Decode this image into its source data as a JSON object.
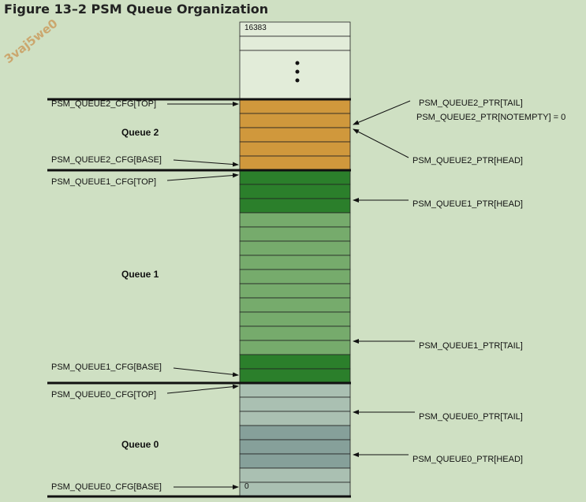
{
  "figure": {
    "title": "Figure 13–2  PSM Queue Organization",
    "watermark": "3vaj5we0"
  },
  "memory": {
    "top_index": "16383",
    "bottom_index": "0",
    "ellipsis": "•\n•\n•"
  },
  "queues": [
    {
      "name": "Queue 2",
      "color": "#d0983c"
    },
    {
      "name": "Queue 1",
      "color": "#2b7f2b",
      "light_color": "#76ab6c"
    },
    {
      "name": "Queue 0",
      "color": "#aac0b2",
      "dark_color": "#86a09a"
    }
  ],
  "labels": {
    "q2_cfg_top": "PSM_QUEUE2_CFG[TOP]",
    "q2_cfg_base": "PSM_QUEUE2_CFG[BASE]",
    "q2_ptr_tail": "PSM_QUEUE2_PTR[TAIL]",
    "q2_ptr_notempty": "PSM_QUEUE2_PTR[NOTEMPTY] = 0",
    "q2_ptr_head": "PSM_QUEUE2_PTR[HEAD]",
    "q1_cfg_top": "PSM_QUEUE1_CFG[TOP]",
    "q1_cfg_base": "PSM_QUEUE1_CFG[BASE]",
    "q1_ptr_head": "PSM_QUEUE1_PTR[HEAD]",
    "q1_ptr_tail": "PSM_QUEUE1_PTR[TAIL]",
    "q0_cfg_top": "PSM_QUEUE0_CFG[TOP]",
    "q0_cfg_base": "PSM_QUEUE0_CFG[BASE]",
    "q0_ptr_tail": "PSM_QUEUE0_PTR[TAIL]",
    "q0_ptr_head": "PSM_QUEUE0_PTR[HEAD]"
  }
}
